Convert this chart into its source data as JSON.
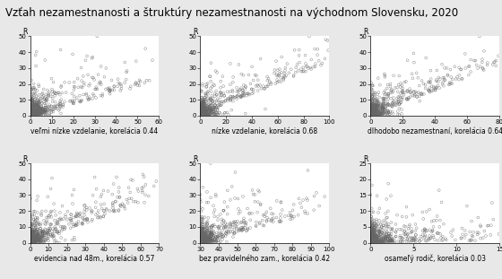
{
  "title": "Vzťah nezamestnanosti a štruktúry nezamestnanosti na východnom Slovensku, 2020",
  "title_fontsize": 8.5,
  "subplots": [
    {
      "xlabel": "veľmi nízke vzdelanie, korelácia 0.44",
      "xlim": [
        0,
        60
      ],
      "ylim": [
        0,
        50
      ],
      "xticks": [
        0,
        10,
        20,
        30,
        40,
        50,
        60
      ],
      "yticks": [
        0,
        10,
        20,
        30,
        40,
        50
      ],
      "correlation": 0.44,
      "x_max": 60,
      "y_max": 50
    },
    {
      "xlabel": "nízke vzdelanie, korelácia 0.68",
      "xlim": [
        0,
        100
      ],
      "ylim": [
        0,
        50
      ],
      "xticks": [
        0,
        20,
        40,
        60,
        80,
        100
      ],
      "yticks": [
        0,
        10,
        20,
        30,
        40,
        50
      ],
      "correlation": 0.68,
      "x_max": 100,
      "y_max": 50
    },
    {
      "xlabel": "dlhodobo nezamestnaní, korelácia 0.64",
      "xlim": [
        0,
        80
      ],
      "ylim": [
        0,
        50
      ],
      "xticks": [
        0,
        20,
        40,
        60,
        80
      ],
      "yticks": [
        0,
        10,
        20,
        30,
        40,
        50
      ],
      "correlation": 0.64,
      "x_max": 80,
      "y_max": 50
    },
    {
      "xlabel": "evidencia nad 48m., korelácia 0.57",
      "xlim": [
        0,
        70
      ],
      "ylim": [
        0,
        50
      ],
      "xticks": [
        0,
        10,
        20,
        30,
        40,
        50,
        60,
        70
      ],
      "yticks": [
        0,
        10,
        20,
        30,
        40,
        50
      ],
      "correlation": 0.57,
      "x_max": 70,
      "y_max": 50
    },
    {
      "xlabel": "bez pravidelného zam., korelácia 0.42",
      "xlim": [
        30,
        100
      ],
      "ylim": [
        0,
        50
      ],
      "xticks": [
        30,
        40,
        50,
        60,
        70,
        80,
        90,
        100
      ],
      "yticks": [
        0,
        10,
        20,
        30,
        40,
        50
      ],
      "correlation": 0.42,
      "x_max": 100,
      "x_min": 30,
      "y_max": 50
    },
    {
      "xlabel": "osameľý rodič, korelácia 0.03",
      "xlim": [
        0,
        15
      ],
      "ylim": [
        0,
        25
      ],
      "xticks": [
        0,
        5,
        10,
        15
      ],
      "yticks": [
        0,
        5,
        10,
        15,
        20,
        25
      ],
      "correlation": 0.03,
      "x_max": 15,
      "y_max": 25
    }
  ],
  "n_points": 600,
  "marker_size": 4,
  "marker_color": "#666666",
  "background_color": "#ffffff",
  "figure_facecolor": "#e8e8e8"
}
